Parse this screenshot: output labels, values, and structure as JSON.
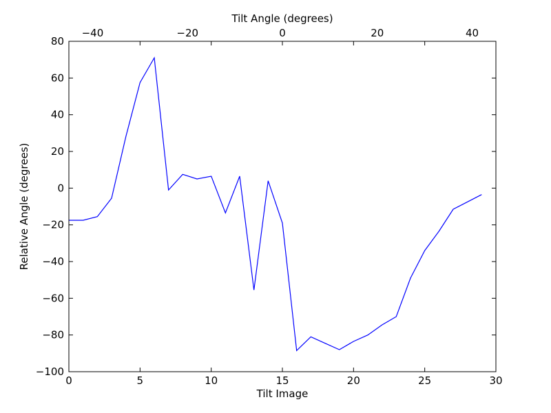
{
  "chart_data": {
    "type": "line",
    "xlabel": "Tilt Image",
    "ylabel": "Relative Angle (degrees)",
    "top_xlabel": "Tilt Angle (degrees)",
    "xlim": [
      0,
      30
    ],
    "ylim": [
      -100,
      80
    ],
    "top_xlim": [
      -45,
      45
    ],
    "x_ticks": [
      0,
      5,
      10,
      15,
      20,
      25,
      30
    ],
    "y_ticks": [
      -100,
      -80,
      -60,
      -40,
      -20,
      0,
      20,
      40,
      60,
      80
    ],
    "top_x_ticks": [
      -40,
      -20,
      0,
      20,
      40
    ],
    "grid": false,
    "line_color": "#0000ff",
    "series": [
      {
        "x": [
          0,
          1,
          2,
          3,
          4,
          5,
          6,
          7,
          8,
          9,
          10,
          11,
          12,
          13,
          14,
          15,
          16,
          17,
          18,
          19,
          20,
          21,
          22,
          23,
          24,
          25,
          26,
          27,
          28,
          29
        ],
        "values": [
          -17.5,
          -17.5,
          -15.5,
          -5.5,
          28,
          57.5,
          71,
          -1,
          7.5,
          5,
          6.5,
          -13.5,
          6.5,
          -55.5,
          4,
          -19,
          -88.5,
          -81,
          -84.5,
          -88,
          -83.5,
          -80,
          -74.5,
          -70,
          -49,
          -34,
          -23.5,
          -11.5,
          -7.5,
          -3.5
        ]
      }
    ]
  }
}
